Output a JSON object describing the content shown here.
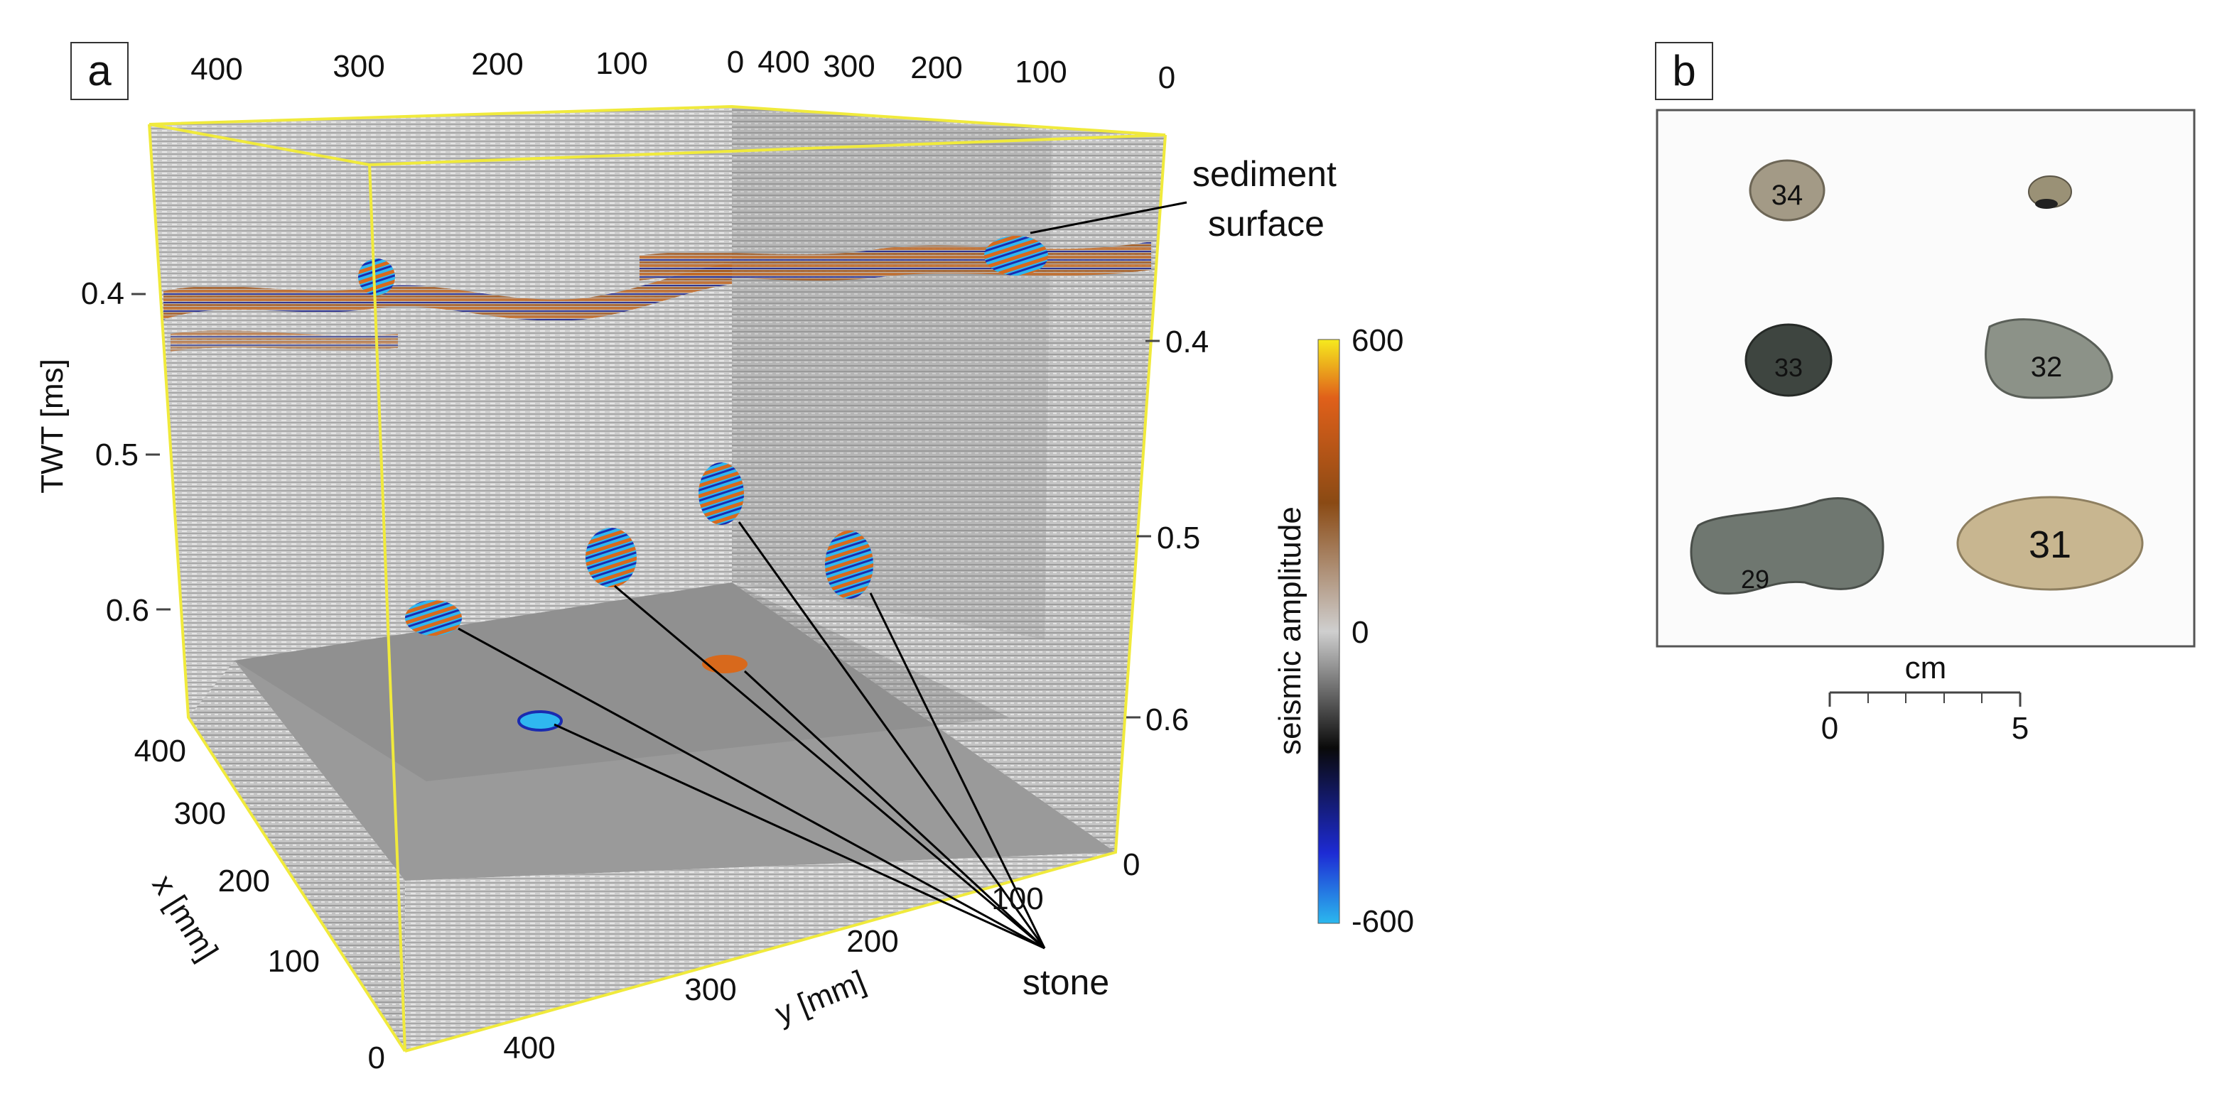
{
  "panels": {
    "a": {
      "label": "a"
    },
    "b": {
      "label": "b"
    }
  },
  "axes": {
    "twt_left": {
      "title": "TWT [ms]",
      "ticks": [
        "0.4",
        "0.5",
        "0.6"
      ]
    },
    "twt_right": {
      "ticks": [
        "0.4",
        "0.5",
        "0.6",
        "0"
      ]
    },
    "top_left": {
      "ticks": [
        "400",
        "300",
        "200",
        "100",
        "0"
      ]
    },
    "top_right": {
      "ticks": [
        "400",
        "300",
        "200",
        "100",
        "0"
      ]
    },
    "x": {
      "title": "x [mm]",
      "ticks": [
        "400",
        "300",
        "200",
        "100",
        "0"
      ]
    },
    "y": {
      "title": "y [mm]",
      "ticks": [
        "400",
        "300",
        "200",
        "100"
      ]
    }
  },
  "annotations": {
    "sediment_line1": "sediment",
    "sediment_line2": "surface",
    "stone": "stone"
  },
  "colorbar": {
    "title": "seismic amplitude",
    "max": "600",
    "mid": "0",
    "min": "-600",
    "colors": [
      "#2bb8ee",
      "#1d2bd4",
      "#0a0a0a",
      "#cfcfcf",
      "#8a4a14",
      "#e0601a",
      "#f6ea1e"
    ]
  },
  "stones": {
    "labels": [
      "34",
      "32",
      "33",
      "31",
      "29"
    ]
  },
  "scalebar": {
    "unit": "cm",
    "min": "0",
    "max": "5"
  },
  "style": {
    "frame_color": "#f0ea3c",
    "reflector_orange": "#d8691c",
    "reflector_blue": "#1a2bb0",
    "stone_cyan": "#2fb7f0"
  }
}
